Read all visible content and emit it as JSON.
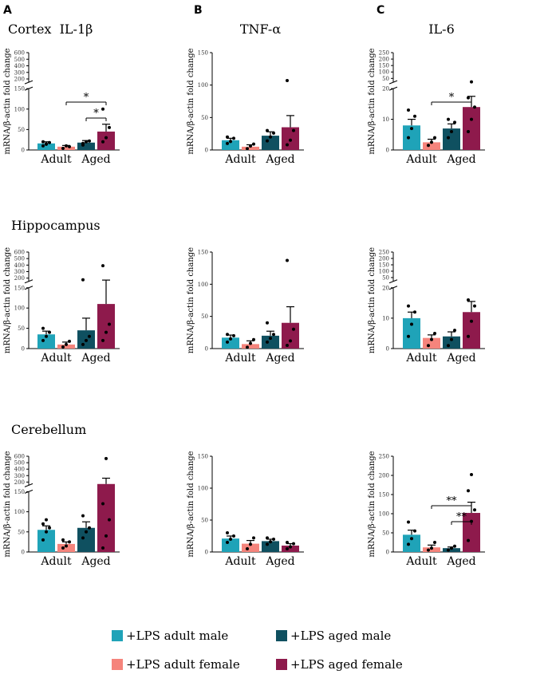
{
  "panel_letters": [
    "A",
    "B",
    "C"
  ],
  "region_labels": [
    "Cortex",
    "Hippocampus",
    "Cerebellum"
  ],
  "colors": {
    "adult_male": "#1fa3b8",
    "adult_female": "#f5847c",
    "aged_male": "#0f5060",
    "aged_female": "#8e1a4c"
  },
  "legend": [
    {
      "label": "+LPS adult male",
      "color": "#1fa3b8"
    },
    {
      "label": "+LPS adult female",
      "color": "#f5847c"
    },
    {
      "label": "+LPS aged male",
      "color": "#0f5060"
    },
    {
      "label": "+LPS aged female",
      "color": "#8e1a4c"
    }
  ],
  "chart_data": [
    {
      "type": "bar",
      "region": "Cortex",
      "title": "IL-1β",
      "ylabel": "mRNA/β-actin fold change",
      "categories": [
        "Adult",
        "Aged"
      ],
      "axis_break": {
        "lower": [
          0,
          150
        ],
        "upper": [
          150,
          600
        ],
        "lower_ticks": [
          0,
          50,
          100,
          150
        ],
        "upper_ticks": [
          200,
          300,
          400,
          500,
          600
        ]
      },
      "series": [
        {
          "name": "+LPS adult male",
          "mean": 16,
          "sem": 4,
          "points": [
            10,
            14,
            18,
            20,
            15
          ]
        },
        {
          "name": "+LPS adult female",
          "mean": 8,
          "sem": 3,
          "points": [
            4,
            10,
            8
          ]
        },
        {
          "name": "+LPS aged male",
          "mean": 18,
          "sem": 5,
          "points": [
            12,
            20,
            22,
            16
          ]
        },
        {
          "name": "+LPS aged female",
          "mean": 45,
          "sem": 18,
          "points": [
            20,
            30,
            55,
            100
          ]
        }
      ],
      "significance": [
        {
          "from": "+LPS adult female",
          "to": "+LPS aged female",
          "label": "*"
        },
        {
          "from": "+LPS aged male",
          "to": "+LPS aged female",
          "label": "*"
        }
      ]
    },
    {
      "type": "bar",
      "region": "Cortex",
      "title": "TNF-α",
      "ylabel": "mRNA/β-actin fold change",
      "categories": [
        "Adult",
        "Aged"
      ],
      "axis_break": null,
      "ylim": [
        0,
        150
      ],
      "ticks": [
        0,
        50,
        100,
        150
      ],
      "series": [
        {
          "name": "+LPS adult male",
          "mean": 15,
          "sem": 3,
          "points": [
            10,
            13,
            18,
            20
          ]
        },
        {
          "name": "+LPS adult female",
          "mean": 5,
          "sem": 3,
          "points": [
            2,
            6,
            9
          ]
        },
        {
          "name": "+LPS aged male",
          "mean": 22,
          "sem": 6,
          "points": [
            14,
            20,
            26,
            30
          ]
        },
        {
          "name": "+LPS aged female",
          "mean": 35,
          "sem": 18,
          "points": [
            8,
            15,
            30,
            107
          ]
        }
      ],
      "significance": []
    },
    {
      "type": "bar",
      "region": "Cortex",
      "title": "IL-6",
      "ylabel": "mRNA/β-actin fold change",
      "categories": [
        "Adult",
        "Aged"
      ],
      "axis_break": {
        "lower": [
          0,
          20
        ],
        "upper": [
          20,
          250
        ],
        "lower_ticks": [
          0,
          10,
          20
        ],
        "upper_ticks": [
          50,
          100,
          150,
          200,
          250
        ]
      },
      "series": [
        {
          "name": "+LPS adult male",
          "mean": 8,
          "sem": 2,
          "points": [
            4,
            7,
            11,
            13
          ]
        },
        {
          "name": "+LPS adult female",
          "mean": 2.5,
          "sem": 1,
          "points": [
            1.5,
            2.5,
            4
          ]
        },
        {
          "name": "+LPS aged male",
          "mean": 7,
          "sem": 1.5,
          "points": [
            4,
            6,
            9,
            10
          ]
        },
        {
          "name": "+LPS aged female",
          "mean": 14,
          "sem": 3.5,
          "points": [
            6,
            10,
            14,
            17,
            23
          ]
        }
      ],
      "significance": [
        {
          "from": "+LPS adult female",
          "to": "+LPS aged female",
          "label": "*"
        }
      ]
    },
    {
      "type": "bar",
      "region": "Hippocampus",
      "title": "",
      "ylabel": "mRNA/β-actin fold change",
      "categories": [
        "Adult",
        "Aged"
      ],
      "axis_break": {
        "lower": [
          0,
          150
        ],
        "upper": [
          150,
          600
        ],
        "lower_ticks": [
          0,
          50,
          100,
          150
        ],
        "upper_ticks": [
          200,
          300,
          400,
          500,
          600
        ]
      },
      "series": [
        {
          "name": "+LPS adult male",
          "mean": 35,
          "sem": 8,
          "points": [
            20,
            30,
            40,
            50
          ]
        },
        {
          "name": "+LPS adult female",
          "mean": 10,
          "sem": 6,
          "points": [
            4,
            10,
            18
          ]
        },
        {
          "name": "+LPS aged male",
          "mean": 45,
          "sem": 30,
          "points": [
            10,
            20,
            30,
            175
          ]
        },
        {
          "name": "+LPS aged female",
          "mean": 110,
          "sem": 60,
          "points": [
            20,
            40,
            60,
            390
          ]
        }
      ],
      "significance": []
    },
    {
      "type": "bar",
      "region": "Hippocampus",
      "title": "",
      "ylabel": "mRNA/β-actin fold change",
      "categories": [
        "Adult",
        "Aged"
      ],
      "axis_break": null,
      "ylim": [
        0,
        150
      ],
      "ticks": [
        0,
        50,
        100,
        150
      ],
      "series": [
        {
          "name": "+LPS adult male",
          "mean": 17,
          "sem": 4,
          "points": [
            10,
            15,
            20,
            22
          ]
        },
        {
          "name": "+LPS adult female",
          "mean": 7,
          "sem": 5,
          "points": [
            2,
            8,
            14
          ]
        },
        {
          "name": "+LPS aged male",
          "mean": 20,
          "sem": 7,
          "points": [
            10,
            16,
            22,
            40
          ]
        },
        {
          "name": "+LPS aged female",
          "mean": 40,
          "sem": 25,
          "points": [
            5,
            12,
            30,
            137
          ]
        }
      ],
      "significance": []
    },
    {
      "type": "bar",
      "region": "Hippocampus",
      "title": "",
      "ylabel": "mRNA/β-actin fold change",
      "categories": [
        "Adult",
        "Aged"
      ],
      "axis_break": {
        "lower": [
          0,
          20
        ],
        "upper": [
          20,
          250
        ],
        "lower_ticks": [
          0,
          10,
          20
        ],
        "upper_ticks": [
          50,
          100,
          150,
          200,
          250
        ]
      },
      "series": [
        {
          "name": "+LPS adult male",
          "mean": 10,
          "sem": 2,
          "points": [
            4,
            8,
            12,
            14
          ]
        },
        {
          "name": "+LPS adult female",
          "mean": 3.5,
          "sem": 1,
          "points": [
            1,
            3,
            5
          ]
        },
        {
          "name": "+LPS aged male",
          "mean": 4,
          "sem": 1.5,
          "points": [
            1,
            3,
            6
          ]
        },
        {
          "name": "+LPS aged female",
          "mean": 12,
          "sem": 3.5,
          "points": [
            4,
            9,
            14,
            16
          ]
        }
      ],
      "significance": []
    },
    {
      "type": "bar",
      "region": "Cerebellum",
      "title": "",
      "ylabel": "mRNA/β-actin fold change",
      "categories": [
        "Adult",
        "Aged"
      ],
      "axis_break": {
        "lower": [
          0,
          150
        ],
        "upper": [
          150,
          600
        ],
        "lower_ticks": [
          0,
          50,
          100,
          150
        ],
        "upper_ticks": [
          200,
          300,
          400,
          500,
          600
        ]
      },
      "series": [
        {
          "name": "+LPS adult male",
          "mean": 55,
          "sem": 10,
          "points": [
            30,
            50,
            60,
            70,
            80
          ]
        },
        {
          "name": "+LPS adult female",
          "mean": 20,
          "sem": 5,
          "points": [
            10,
            15,
            25,
            30
          ]
        },
        {
          "name": "+LPS aged male",
          "mean": 60,
          "sem": 15,
          "points": [
            35,
            50,
            60,
            90
          ]
        },
        {
          "name": "+LPS aged female",
          "mean": 170,
          "sem": 90,
          "points": [
            10,
            40,
            80,
            120,
            565
          ]
        }
      ],
      "significance": []
    },
    {
      "type": "bar",
      "region": "Cerebellum",
      "title": "",
      "ylabel": "mRNA/β-actin fold change",
      "categories": [
        "Adult",
        "Aged"
      ],
      "axis_break": null,
      "ylim": [
        0,
        150
      ],
      "ticks": [
        0,
        50,
        100,
        150
      ],
      "series": [
        {
          "name": "+LPS adult male",
          "mean": 21,
          "sem": 4,
          "points": [
            15,
            20,
            25,
            30
          ]
        },
        {
          "name": "+LPS adult female",
          "mean": 13,
          "sem": 5,
          "points": [
            5,
            12,
            22
          ]
        },
        {
          "name": "+LPS aged male",
          "mean": 17,
          "sem": 3,
          "points": [
            12,
            16,
            20,
            22
          ]
        },
        {
          "name": "+LPS aged female",
          "mean": 10,
          "sem": 3,
          "points": [
            5,
            8,
            13,
            15
          ]
        }
      ],
      "significance": []
    },
    {
      "type": "bar",
      "region": "Cerebellum",
      "title": "",
      "ylabel": "mRNA/β-actin fold change",
      "categories": [
        "Adult",
        "Aged"
      ],
      "axis_break": null,
      "ylim": [
        0,
        250
      ],
      "ticks": [
        0,
        50,
        100,
        150,
        200,
        250
      ],
      "series": [
        {
          "name": "+LPS adult male",
          "mean": 45,
          "sem": 12,
          "points": [
            20,
            35,
            55,
            78
          ]
        },
        {
          "name": "+LPS adult female",
          "mean": 12,
          "sem": 6,
          "points": [
            5,
            10,
            25
          ]
        },
        {
          "name": "+LPS aged male",
          "mean": 10,
          "sem": 3,
          "points": [
            5,
            10,
            15
          ]
        },
        {
          "name": "+LPS aged female",
          "mean": 102,
          "sem": 28,
          "points": [
            30,
            80,
            110,
            160,
            202
          ]
        }
      ],
      "significance": [
        {
          "from": "+LPS adult female",
          "to": "+LPS aged female",
          "label": "**"
        },
        {
          "from": "+LPS aged male",
          "to": "+LPS aged female",
          "label": "**"
        }
      ]
    }
  ]
}
